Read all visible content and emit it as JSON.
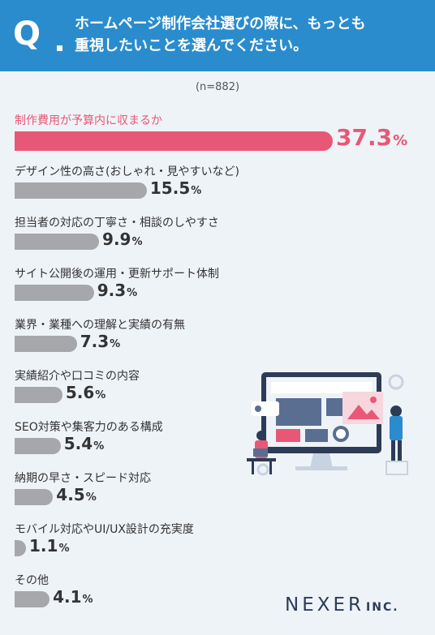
{
  "header": {
    "q_mark": "Q",
    "question_line1": "ホームページ制作会社選びの際に、もっとも",
    "question_line2": "重視したいことを選んでください。"
  },
  "sample_size": "(n=882)",
  "colors": {
    "header_bg": "#2a8ccd",
    "highlight": "#e85876",
    "bar_gray": "#a5a7ab",
    "background": "#eef3f8"
  },
  "chart_data": {
    "type": "bar",
    "orientation": "horizontal",
    "categories": [
      "制作費用が予算内に収まるか",
      "デザイン性の高さ(おしゃれ・見やすいなど)",
      "担当者の対応の丁寧さ・相談のしやすさ",
      "サイト公開後の運用・更新サポート体制",
      "業界・業種への理解と実績の有無",
      "実績紹介や口コミの内容",
      "SEO対策や集客力のある構成",
      "納期の早さ・スピード対応",
      "モバイル対応やUI/UX設計の充実度",
      "その他"
    ],
    "values": [
      37.3,
      15.5,
      9.9,
      9.3,
      7.3,
      5.6,
      5.4,
      4.5,
      1.1,
      4.1
    ],
    "value_labels": [
      "37.3",
      "15.5",
      "9.9",
      "9.3",
      "7.3",
      "5.6",
      "5.4",
      "4.5",
      "1.1",
      "4.1"
    ],
    "unit": "%",
    "highlight_index": 0,
    "xlim": [
      0,
      37.3
    ],
    "grid": false
  },
  "logo": {
    "main": "NEXER",
    "sub": "INC."
  }
}
